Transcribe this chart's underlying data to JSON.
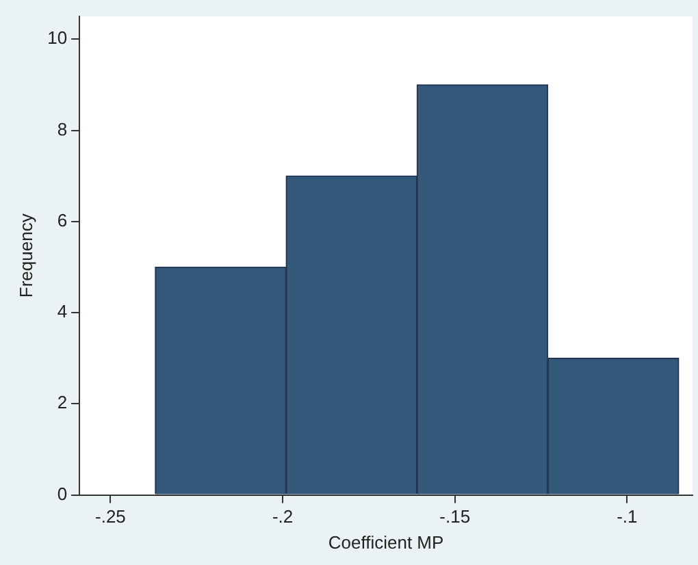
{
  "chart_data": {
    "type": "histogram",
    "xlabel": "Coefficient MP",
    "ylabel": "Frequency",
    "bins": [
      -0.237,
      -0.199,
      -0.161,
      -0.123,
      -0.085
    ],
    "values": [
      5,
      7,
      9,
      3
    ],
    "color": "#34587a",
    "xlim": [
      -0.259,
      -0.081
    ],
    "xticks": [
      {
        "value": -0.25,
        "label": "-.25"
      },
      {
        "value": -0.2,
        "label": "-.2"
      },
      {
        "value": -0.15,
        "label": "-.15"
      },
      {
        "value": -0.1,
        "label": "-.1"
      }
    ],
    "ylim": [
      0,
      10.5
    ],
    "yticks": [
      0,
      2,
      4,
      6,
      8,
      10
    ],
    "grid": false,
    "legend": false
  }
}
